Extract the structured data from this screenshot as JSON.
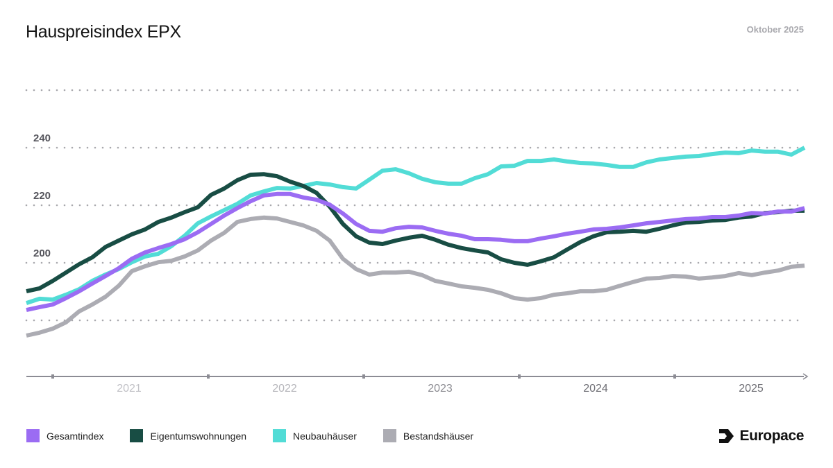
{
  "header": {
    "title": "Hauspreisindex EPX",
    "date": "Oktober 2025"
  },
  "brand": {
    "logo_text": "Europace",
    "icon": "europace-logo-icon"
  },
  "chart_data": {
    "type": "line",
    "title": "Hauspreisindex EPX",
    "xlabel": "",
    "ylabel": "",
    "ylim": [
      160,
      262
    ],
    "gridlines": [
      180,
      200,
      220,
      240,
      260
    ],
    "grid": true,
    "y_tick_labels": [
      "200",
      "220",
      "240"
    ],
    "y_ticks": [
      200,
      220,
      240
    ],
    "x_tick_labels": [
      "2021",
      "2022",
      "2023",
      "2024",
      "2025"
    ],
    "x_tick_label_colors": [
      "#c2c2c7",
      "#b6b6bb",
      "#8d8d93",
      "#6f6f75",
      "#6f6f75"
    ],
    "x_start": "2020-11",
    "x_end": "2025-10",
    "x_frequency": "monthly",
    "legend_placement": "bottom-left",
    "series": [
      {
        "name": "Gesamtindex",
        "color": "#9b6cf3",
        "values": [
          183.6,
          184.6,
          185.5,
          187.7,
          190.1,
          192.8,
          195.4,
          198.1,
          201.4,
          203.6,
          205.1,
          206.5,
          208.2,
          210.6,
          213.5,
          216.4,
          219.0,
          221.4,
          223.4,
          223.9,
          223.9,
          222.7,
          221.9,
          220.2,
          217.1,
          213.5,
          211.1,
          210.8,
          212.0,
          212.5,
          212.3,
          211.1,
          210.1,
          209.4,
          208.2,
          208.2,
          208.0,
          207.5,
          207.5,
          208.4,
          209.2,
          210.1,
          210.8,
          211.6,
          211.8,
          212.3,
          213.0,
          213.7,
          214.2,
          214.7,
          215.2,
          215.4,
          215.9,
          215.9,
          216.4,
          217.3,
          217.1,
          217.8,
          217.8,
          219.0
        ]
      },
      {
        "name": "Eigentumswohnungen",
        "color": "#184d44",
        "values": [
          190.1,
          191.1,
          193.7,
          196.6,
          199.5,
          201.9,
          205.5,
          207.7,
          209.9,
          211.6,
          214.2,
          215.7,
          217.6,
          219.3,
          223.6,
          225.8,
          228.7,
          230.6,
          230.8,
          230.1,
          228.2,
          226.7,
          224.3,
          219.5,
          213.5,
          209.2,
          207.0,
          206.5,
          207.7,
          208.7,
          209.4,
          208.0,
          206.3,
          205.1,
          204.3,
          203.6,
          201.2,
          200.0,
          199.3,
          200.5,
          201.9,
          204.6,
          207.2,
          209.2,
          210.6,
          210.8,
          211.1,
          210.8,
          211.8,
          213.0,
          214.0,
          214.2,
          214.7,
          214.9,
          215.7,
          216.1,
          217.3,
          217.6,
          218.1,
          218.1
        ]
      },
      {
        "name": "Neubauhäuser",
        "color": "#52dcd6",
        "values": [
          186.0,
          187.5,
          187.2,
          188.9,
          190.8,
          193.7,
          195.9,
          197.8,
          200.2,
          202.2,
          203.1,
          205.8,
          209.4,
          213.7,
          216.1,
          218.3,
          220.5,
          223.4,
          224.8,
          226.0,
          225.8,
          226.7,
          227.7,
          227.2,
          226.3,
          225.8,
          228.9,
          232.0,
          232.5,
          231.1,
          229.2,
          228.0,
          227.5,
          227.5,
          229.4,
          230.8,
          233.5,
          233.7,
          235.4,
          235.4,
          235.9,
          235.2,
          234.7,
          234.5,
          234.0,
          233.3,
          233.3,
          234.9,
          235.9,
          236.4,
          236.9,
          237.1,
          237.8,
          238.3,
          238.1,
          239.0,
          238.6,
          238.6,
          237.6,
          240.0
        ]
      },
      {
        "name": "Bestandshäuser",
        "color": "#acacb3",
        "values": [
          174.7,
          175.7,
          177.1,
          179.3,
          183.1,
          185.5,
          188.2,
          192.0,
          197.1,
          198.8,
          200.2,
          200.7,
          202.2,
          204.3,
          207.7,
          210.4,
          214.2,
          215.2,
          215.7,
          215.4,
          214.2,
          213.0,
          211.1,
          207.7,
          201.4,
          197.8,
          195.9,
          196.6,
          196.6,
          196.9,
          195.7,
          193.7,
          192.8,
          191.8,
          191.3,
          190.6,
          189.4,
          187.7,
          187.2,
          187.7,
          188.9,
          189.4,
          190.1,
          190.1,
          190.6,
          192.0,
          193.3,
          194.5,
          194.7,
          195.4,
          195.2,
          194.5,
          194.9,
          195.4,
          196.4,
          195.7,
          196.6,
          197.3,
          198.6,
          199.0
        ]
      }
    ]
  }
}
